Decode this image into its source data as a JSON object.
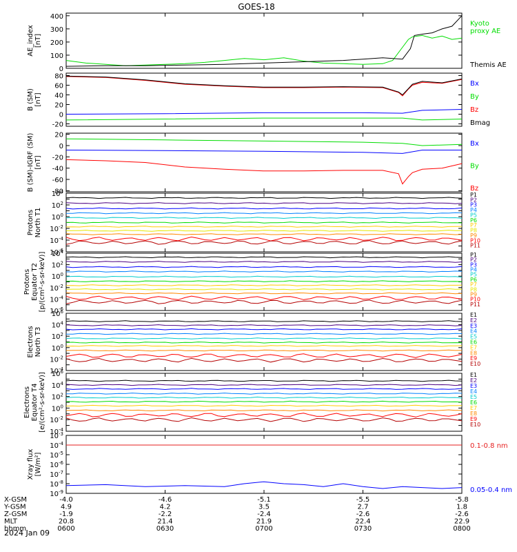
{
  "title": "GOES-18",
  "date": "2024 Jan 09",
  "time_ticks": [
    "0600",
    "0630",
    "0700",
    "0730",
    "0800"
  ],
  "time_hours": [
    6.0,
    6.5,
    7.0,
    7.5,
    8.0
  ],
  "ephemeris": {
    "rows": [
      {
        "label": "X-GSM",
        "values": [
          "-4.0",
          "-4.6",
          "-5.1",
          "-5.5",
          "-5.8"
        ]
      },
      {
        "label": "Y-GSM",
        "values": [
          "4.9",
          "4.2",
          "3.5",
          "2.7",
          "1.8"
        ]
      },
      {
        "label": "Z-GSM",
        "values": [
          "-1.9",
          "-2.2",
          "-2.4",
          "-2.6",
          "-2.6"
        ]
      },
      {
        "label": "MLT",
        "values": [
          "20.8",
          "21.4",
          "21.9",
          "22.4",
          "22.9"
        ]
      },
      {
        "label": "hhmm",
        "values": [
          "0600",
          "0630",
          "0700",
          "0730",
          "0800"
        ]
      }
    ]
  },
  "colors": {
    "black": "#000000",
    "blue": "#0000ff",
    "green": "#00dd00",
    "red": "#ff0000",
    "darkred": "#b40000",
    "navy": "#00007f",
    "cyan": "#00dddd",
    "aqua": "#00cccc",
    "lime": "#00ff66",
    "gold": "#ffcc00",
    "yellow": "#e6e600",
    "orange": "#ff8800",
    "purple": "#4b0082",
    "xray_red": "#e61e1e"
  },
  "chart_data": [
    {
      "type": "line",
      "ylabel": "AE_index\n[nT]",
      "ylim": [
        0,
        420
      ],
      "yticks": [
        0,
        100,
        200,
        300,
        400
      ],
      "tick_labels": [
        "0",
        "100",
        "200",
        "300",
        "400"
      ],
      "log": false,
      "legend": [
        {
          "text": "Kyoto\nproxy AE",
          "color": "#00dd00"
        },
        {
          "text": "Themis AE",
          "color": "#000000"
        }
      ],
      "series": [
        {
          "name": "Kyoto proxy AE",
          "color": "#00dd00",
          "x": [
            6.0,
            6.1,
            6.2,
            6.3,
            6.4,
            6.5,
            6.6,
            6.7,
            6.8,
            6.9,
            7.0,
            7.1,
            7.2,
            7.3,
            7.4,
            7.5,
            7.6,
            7.65,
            7.7,
            7.73,
            7.75,
            7.8,
            7.85,
            7.9,
            7.95,
            8.0
          ],
          "y": [
            60,
            40,
            30,
            20,
            25,
            30,
            35,
            45,
            60,
            75,
            65,
            80,
            55,
            40,
            35,
            30,
            35,
            60,
            160,
            220,
            240,
            250,
            230,
            245,
            220,
            230
          ]
        },
        {
          "name": "Themis AE",
          "color": "#000000",
          "x": [
            6.0,
            6.2,
            6.4,
            6.6,
            6.8,
            7.0,
            7.2,
            7.4,
            7.5,
            7.6,
            7.7,
            7.74,
            7.76,
            7.8,
            7.85,
            7.9,
            7.95,
            8.0
          ],
          "y": [
            15,
            20,
            20,
            25,
            30,
            40,
            50,
            60,
            70,
            80,
            70,
            150,
            250,
            260,
            270,
            300,
            320,
            400
          ]
        }
      ]
    },
    {
      "type": "line",
      "ylabel": "B (SM)\n[nT]",
      "ylim": [
        -25,
        85
      ],
      "yticks": [
        -20,
        0,
        20,
        40,
        60,
        80
      ],
      "tick_labels": [
        "-20",
        "0",
        "20",
        "40",
        "60",
        "80"
      ],
      "log": false,
      "legend": [
        {
          "text": "Bx",
          "color": "#0000ff"
        },
        {
          "text": "By",
          "color": "#00dd00"
        },
        {
          "text": "Bz",
          "color": "#ff0000"
        },
        {
          "text": "Bmag",
          "color": "#000000"
        }
      ],
      "series": [
        {
          "name": "Bx",
          "color": "#0000ff",
          "x": [
            6.0,
            6.5,
            7.0,
            7.5,
            7.7,
            7.8,
            8.0
          ],
          "y": [
            0,
            1,
            3,
            3,
            2,
            8,
            10
          ]
        },
        {
          "name": "By",
          "color": "#00dd00",
          "x": [
            6.0,
            6.5,
            7.0,
            7.5,
            7.7,
            7.8,
            8.0
          ],
          "y": [
            -12,
            -10,
            -8,
            -8,
            -8,
            -12,
            -10
          ]
        },
        {
          "name": "Bz",
          "color": "#ff0000",
          "x": [
            6.0,
            6.2,
            6.4,
            6.6,
            6.8,
            7.0,
            7.2,
            7.4,
            7.6,
            7.68,
            7.7,
            7.73,
            7.75,
            7.8,
            7.9,
            8.0
          ],
          "y": [
            78,
            76,
            70,
            62,
            58,
            55,
            55,
            56,
            55,
            45,
            38,
            52,
            60,
            66,
            64,
            72
          ]
        },
        {
          "name": "Bmag",
          "color": "#000000",
          "x": [
            6.0,
            6.2,
            6.4,
            6.6,
            6.8,
            7.0,
            7.2,
            7.4,
            7.6,
            7.68,
            7.7,
            7.73,
            7.75,
            7.8,
            7.9,
            8.0
          ],
          "y": [
            79,
            77,
            71,
            63,
            59,
            56,
            56,
            57,
            56,
            46,
            40,
            53,
            62,
            68,
            65,
            73
          ]
        }
      ]
    },
    {
      "type": "line",
      "ylabel": "B (SM)-IGRF (SM)\n[nT]",
      "ylim": [
        -82,
        22
      ],
      "yticks": [
        -80,
        -60,
        -40,
        -20,
        0,
        20
      ],
      "tick_labels": [
        "-80",
        "-60",
        "-40",
        "-20",
        "0",
        "20"
      ],
      "log": false,
      "legend": [
        {
          "text": "Bx",
          "color": "#0000ff"
        },
        {
          "text": "By",
          "color": "#00dd00"
        },
        {
          "text": "Bz",
          "color": "#ff0000"
        }
      ],
      "series": [
        {
          "name": "Bx",
          "color": "#0000ff",
          "x": [
            6.0,
            6.5,
            7.0,
            7.5,
            7.7,
            7.8,
            8.0
          ],
          "y": [
            -8,
            -9,
            -10,
            -12,
            -14,
            -8,
            -8
          ]
        },
        {
          "name": "By",
          "color": "#00dd00",
          "x": [
            6.0,
            6.5,
            7.0,
            7.5,
            7.7,
            7.8,
            8.0
          ],
          "y": [
            12,
            10,
            8,
            6,
            4,
            0,
            2
          ]
        },
        {
          "name": "Bz",
          "color": "#ff0000",
          "x": [
            6.0,
            6.2,
            6.4,
            6.6,
            6.8,
            7.0,
            7.2,
            7.4,
            7.6,
            7.68,
            7.7,
            7.73,
            7.75,
            7.8,
            7.9,
            8.0
          ],
          "y": [
            -25,
            -27,
            -30,
            -38,
            -42,
            -45,
            -45,
            -44,
            -44,
            -50,
            -68,
            -55,
            -48,
            -42,
            -40,
            -32
          ]
        }
      ]
    },
    {
      "type": "line",
      "ylabel": "Protons\nNorth T1",
      "ylim_exp": [
        -6,
        4
      ],
      "log": true,
      "legend": [
        {
          "text": "P1",
          "color": "#000000"
        },
        {
          "text": "P2",
          "color": "#4b0082"
        },
        {
          "text": "P3",
          "color": "#0000ff"
        },
        {
          "text": "P4",
          "color": "#0080ff"
        },
        {
          "text": "P5",
          "color": "#00cccc"
        },
        {
          "text": "P6",
          "color": "#00dd00"
        },
        {
          "text": "P7",
          "color": "#ffcc00"
        },
        {
          "text": "P8",
          "color": "#e6e600"
        },
        {
          "text": "P9",
          "color": "#ff8800"
        },
        {
          "text": "P10",
          "color": "#ff0000"
        },
        {
          "text": "P11",
          "color": "#b40000"
        }
      ],
      "series": [
        {
          "name": "P1",
          "color": "#000000",
          "level": 3.2
        },
        {
          "name": "P2",
          "color": "#4b0082",
          "level": 2.3
        },
        {
          "name": "P3",
          "color": "#0000ff",
          "level": 1.4
        },
        {
          "name": "P4",
          "color": "#0080ff",
          "level": 0.6
        },
        {
          "name": "P5",
          "color": "#00cccc",
          "level": -0.2
        },
        {
          "name": "P6",
          "color": "#00dd00",
          "level": -1.0
        },
        {
          "name": "P7",
          "color": "#ffcc00",
          "level": -1.7
        },
        {
          "name": "P8",
          "color": "#e6e600",
          "level": -2.4
        },
        {
          "name": "P9",
          "color": "#ff8800",
          "level": -3.0
        },
        {
          "name": "P10",
          "color": "#ff0000",
          "level": -3.8
        },
        {
          "name": "P11",
          "color": "#b40000",
          "level": -4.4
        }
      ]
    },
    {
      "type": "line",
      "ylabel": "Protons\nEquator T2\n[p/(cm²-s-sr-keV)]",
      "ylim_exp": [
        -6,
        4
      ],
      "log": true,
      "legend": [
        {
          "text": "P1",
          "color": "#000000"
        },
        {
          "text": "P2",
          "color": "#4b0082"
        },
        {
          "text": "P3",
          "color": "#0000ff"
        },
        {
          "text": "P4",
          "color": "#0080ff"
        },
        {
          "text": "P5",
          "color": "#00cccc"
        },
        {
          "text": "P6",
          "color": "#00dd00"
        },
        {
          "text": "P7",
          "color": "#ffcc00"
        },
        {
          "text": "P8",
          "color": "#e6e600"
        },
        {
          "text": "P9",
          "color": "#ff8800"
        },
        {
          "text": "P10",
          "color": "#ff0000"
        },
        {
          "text": "P11",
          "color": "#b40000"
        }
      ],
      "series": [
        {
          "name": "P1",
          "color": "#000000",
          "level": 3.3
        },
        {
          "name": "P2",
          "color": "#4b0082",
          "level": 2.5
        },
        {
          "name": "P3",
          "color": "#0000ff",
          "level": 1.6
        },
        {
          "name": "P4",
          "color": "#0080ff",
          "level": 0.8
        },
        {
          "name": "P5",
          "color": "#00cccc",
          "level": -0.1
        },
        {
          "name": "P6",
          "color": "#00dd00",
          "level": -0.9
        },
        {
          "name": "P7",
          "color": "#ffcc00",
          "level": -1.6
        },
        {
          "name": "P8",
          "color": "#e6e600",
          "level": -2.3
        },
        {
          "name": "P9",
          "color": "#ff8800",
          "level": -3.0
        },
        {
          "name": "P10",
          "color": "#ff0000",
          "level": -3.8
        },
        {
          "name": "P11",
          "color": "#b40000",
          "level": -4.5
        }
      ]
    },
    {
      "type": "line",
      "ylabel": "Electrons\nNorth T3",
      "ylim_exp": [
        -4,
        6
      ],
      "log": true,
      "legend": [
        {
          "text": "E1",
          "color": "#000000"
        },
        {
          "text": "E2",
          "color": "#4b0082"
        },
        {
          "text": "E3",
          "color": "#0000ff"
        },
        {
          "text": "E4",
          "color": "#0080ff"
        },
        {
          "text": "E5",
          "color": "#00cccc"
        },
        {
          "text": "E6",
          "color": "#00dd00"
        },
        {
          "text": "E7",
          "color": "#ffcc00"
        },
        {
          "text": "E8",
          "color": "#ff8800"
        },
        {
          "text": "E9",
          "color": "#ff0000"
        },
        {
          "text": "E10",
          "color": "#b40000"
        }
      ],
      "series": [
        {
          "name": "E1",
          "color": "#000000",
          "level": 4.6
        },
        {
          "name": "E2",
          "color": "#4b0082",
          "level": 3.9
        },
        {
          "name": "E3",
          "color": "#0000ff",
          "level": 3.2
        },
        {
          "name": "E4",
          "color": "#0080ff",
          "level": 2.4
        },
        {
          "name": "E5",
          "color": "#00cccc",
          "level": 1.6
        },
        {
          "name": "E6",
          "color": "#00dd00",
          "level": 0.9
        },
        {
          "name": "E7",
          "color": "#ffcc00",
          "level": 0.3
        },
        {
          "name": "E8",
          "color": "#ff8800",
          "level": -0.5
        },
        {
          "name": "E9",
          "color": "#ff0000",
          "level": -1.4
        },
        {
          "name": "E10",
          "color": "#b40000",
          "level": -2.2
        }
      ]
    },
    {
      "type": "line",
      "ylabel": "Electrons\nEquator T4\n[e/(cm²-s-sr-keV)]",
      "ylim_exp": [
        -4,
        6
      ],
      "log": true,
      "legend": [
        {
          "text": "E1",
          "color": "#000000"
        },
        {
          "text": "E2",
          "color": "#4b0082"
        },
        {
          "text": "E3",
          "color": "#0000ff"
        },
        {
          "text": "E4",
          "color": "#0080ff"
        },
        {
          "text": "E5",
          "color": "#00cccc"
        },
        {
          "text": "E6",
          "color": "#00dd00"
        },
        {
          "text": "E7",
          "color": "#ffcc00"
        },
        {
          "text": "E8",
          "color": "#ff8800"
        },
        {
          "text": "E9",
          "color": "#ff0000"
        },
        {
          "text": "E10",
          "color": "#b40000"
        }
      ],
      "series": [
        {
          "name": "E1",
          "color": "#000000",
          "level": 4.7
        },
        {
          "name": "E2",
          "color": "#4b0082",
          "level": 4.0
        },
        {
          "name": "E3",
          "color": "#0000ff",
          "level": 3.3
        },
        {
          "name": "E4",
          "color": "#0080ff",
          "level": 2.5
        },
        {
          "name": "E5",
          "color": "#00cccc",
          "level": 1.8
        },
        {
          "name": "E6",
          "color": "#00dd00",
          "level": 1.1
        },
        {
          "name": "E7",
          "color": "#ffcc00",
          "level": 0.4
        },
        {
          "name": "E8",
          "color": "#ff8800",
          "level": -0.4
        },
        {
          "name": "E9",
          "color": "#ff0000",
          "level": -1.2
        },
        {
          "name": "E10",
          "color": "#b40000",
          "level": -2.0
        }
      ]
    },
    {
      "type": "line",
      "ylabel": "Xray flux\n[W/m²]",
      "ylim_exp": [
        -9,
        -3
      ],
      "log": true,
      "legend": [
        {
          "text": "0.1-0.8 nm",
          "color": "#e61e1e"
        },
        {
          "text": "0.05-0.4 nm",
          "color": "#0000ff"
        }
      ],
      "series": [
        {
          "name": "0.1-0.8 nm",
          "color": "#e61e1e",
          "x": [
            6.0,
            6.5,
            7.0,
            7.5,
            8.0
          ],
          "y_exp": [
            -4.0,
            -4.0,
            -4.0,
            -4.0,
            -4.0
          ]
        },
        {
          "name": "0.05-0.4 nm",
          "color": "#0000ff",
          "x": [
            6.0,
            6.2,
            6.4,
            6.6,
            6.8,
            6.9,
            7.0,
            7.1,
            7.2,
            7.3,
            7.4,
            7.5,
            7.6,
            7.7,
            7.8,
            7.9,
            8.0
          ],
          "y_exp": [
            -8.2,
            -8.1,
            -8.3,
            -8.2,
            -8.3,
            -8.0,
            -7.8,
            -8.0,
            -8.1,
            -8.3,
            -8.0,
            -8.3,
            -8.5,
            -8.3,
            -8.4,
            -8.5,
            -8.4
          ]
        }
      ]
    }
  ]
}
